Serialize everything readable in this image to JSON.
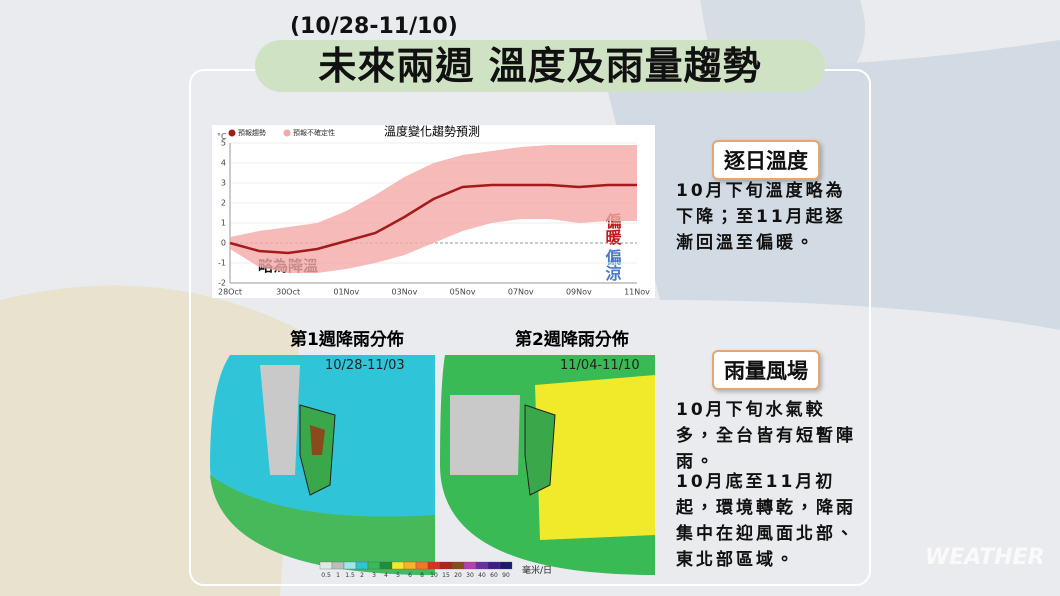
{
  "header": {
    "subtitle": "(10/28-11/10)",
    "title": "未來兩週 溫度及雨量趨勢"
  },
  "chart_data": {
    "type": "line",
    "title": "溫度變化趨勢預測",
    "ylabel": "°C",
    "categories": [
      "28Oct",
      null,
      "30Oct",
      null,
      "01Nov",
      null,
      "03Nov",
      null,
      "05Nov",
      null,
      "07Nov",
      null,
      "09Nov",
      null,
      "11Nov"
    ],
    "series": [
      {
        "name": "預報趨勢",
        "color": "#a31b1b",
        "values": [
          0,
          -0.4,
          -0.5,
          -0.3,
          0.1,
          0.5,
          1.3,
          2.2,
          2.8,
          2.9,
          2.9,
          2.9,
          2.8,
          2.9,
          2.9
        ]
      },
      {
        "name": "預報不確定性",
        "color": "#f4a9a6",
        "low": [
          -0.3,
          -1.2,
          -1.5,
          -1.5,
          -1.3,
          -1,
          -0.6,
          0,
          0.6,
          1,
          1.2,
          1.2,
          1,
          1.1,
          1.1
        ],
        "high": [
          0.3,
          0.6,
          0.8,
          1,
          1.6,
          2.4,
          3.3,
          4,
          4.4,
          4.6,
          4.8,
          4.9,
          4.9,
          4.9,
          4.9
        ]
      }
    ],
    "ylim": [
      -2,
      5
    ],
    "yticks": [
      -2,
      -1,
      0,
      1,
      2,
      3,
      4,
      5
    ],
    "grid": true,
    "annotations": [
      "偏暖",
      "偏涼",
      "略為降溫"
    ]
  },
  "panels": {
    "temperature": {
      "heading": "逐日溫度",
      "text": "10月下旬溫度略為下降；至11月起逐漸回溫至偏暖。"
    },
    "rain": {
      "heading": "雨量風場",
      "paragraphs": [
        "10月下旬水氣較多，全台皆有短暫陣雨。",
        "10月底至11月初起，環境轉乾，降雨集中在迎風面北部、東北部區域。"
      ]
    }
  },
  "maps": [
    {
      "title": "第1週降雨分佈",
      "dates": "10/28-11/03"
    },
    {
      "title": "第2週降雨分佈",
      "dates": "11/04-11/10"
    }
  ],
  "colorbar": {
    "labels": [
      0.5,
      1,
      1.5,
      2,
      3,
      4,
      5,
      6,
      8,
      10,
      15,
      20,
      30,
      40,
      60,
      90
    ],
    "unit": "毫米/日"
  },
  "watermark": "WEATHER"
}
